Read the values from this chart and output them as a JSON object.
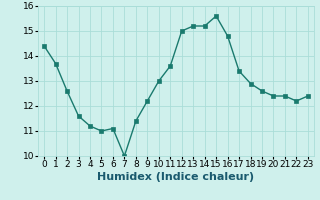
{
  "x": [
    0,
    1,
    2,
    3,
    4,
    5,
    6,
    7,
    8,
    9,
    10,
    11,
    12,
    13,
    14,
    15,
    16,
    17,
    18,
    19,
    20,
    21,
    22,
    23
  ],
  "y": [
    14.4,
    13.7,
    12.6,
    11.6,
    11.2,
    11.0,
    11.1,
    10.0,
    11.4,
    12.2,
    13.0,
    13.6,
    15.0,
    15.2,
    15.2,
    15.6,
    14.8,
    13.4,
    12.9,
    12.6,
    12.4,
    12.4,
    12.2,
    12.4
  ],
  "line_color": "#1a7a6e",
  "bg_color": "#cff0ec",
  "grid_color": "#aaddd8",
  "xlabel": "Humidex (Indice chaleur)",
  "ylim": [
    10,
    16
  ],
  "xlim": [
    -0.5,
    23.5
  ],
  "yticks": [
    10,
    11,
    12,
    13,
    14,
    15,
    16
  ],
  "xtick_labels": [
    "0",
    "1",
    "2",
    "3",
    "4",
    "5",
    "6",
    "7",
    "8",
    "9",
    "10",
    "11",
    "12",
    "13",
    "14",
    "15",
    "16",
    "17",
    "18",
    "19",
    "20",
    "21",
    "22",
    "23"
  ],
  "marker_size": 2.5,
  "line_width": 1.0,
  "xlabel_fontsize": 8,
  "tick_fontsize": 6.5
}
